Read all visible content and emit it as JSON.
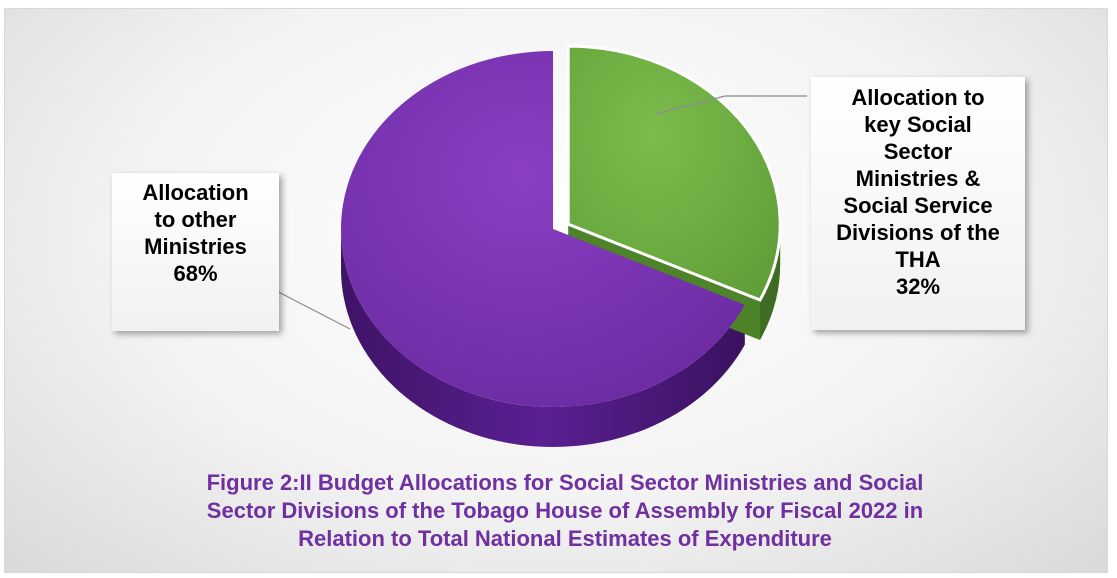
{
  "chart_data": {
    "type": "pie",
    "style": "3d-exploded",
    "slices": [
      {
        "label_lines": [
          "Allocation",
          "to other",
          "Ministries",
          "68%"
        ],
        "value": 68,
        "color": "#7030A0"
      },
      {
        "label_lines": [
          "Allocation to",
          "key Social",
          "Sector",
          "Ministries &",
          "Social Service",
          "Divisions of the",
          "THA",
          "32%"
        ],
        "value": 32,
        "color": "#70AD47"
      }
    ]
  },
  "caption": {
    "lines": [
      "Figure 2:II Budget Allocations for Social Sector Ministries and Social",
      "Sector Divisions of the Tobago House of Assembly for Fiscal 2022 in",
      "Relation to Total National Estimates of Expenditure"
    ],
    "color": "#7030A0"
  }
}
